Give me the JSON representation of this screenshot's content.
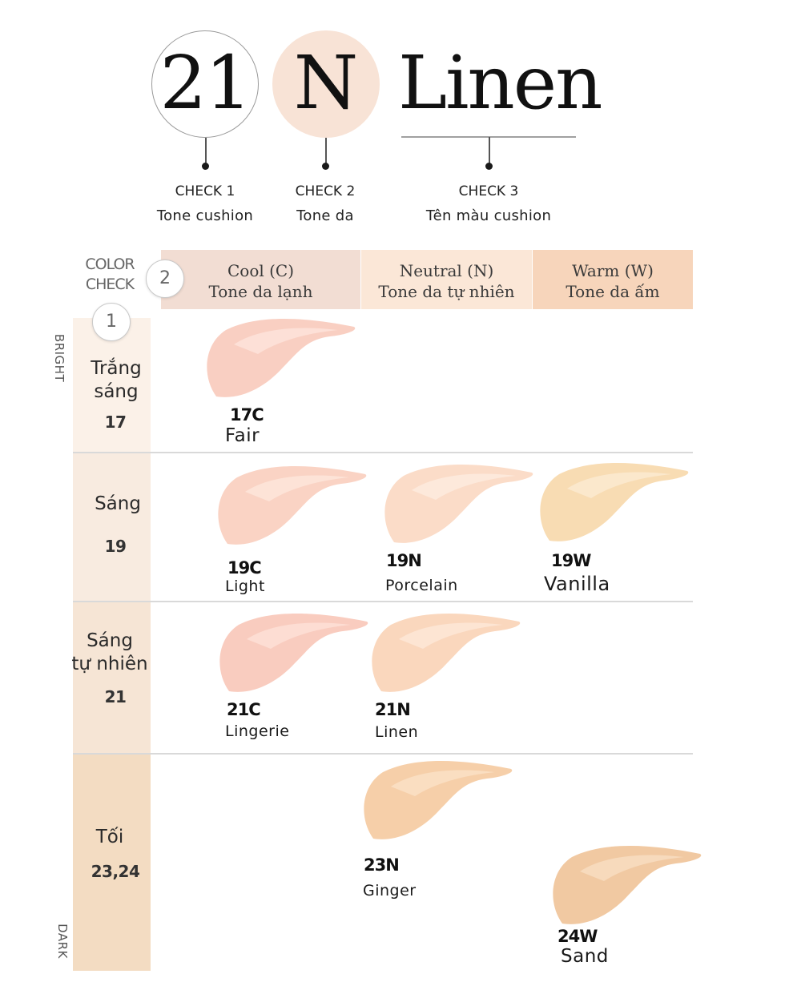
{
  "legend": {
    "code_number": "21",
    "code_letter": "N",
    "code_name": "Linen",
    "checks": [
      {
        "label": "CHECK 1",
        "desc": "Tone cushion"
      },
      {
        "label": "CHECK 2",
        "desc": "Tone da"
      },
      {
        "label": "CHECK 3",
        "desc": "Tên màu cushion"
      }
    ]
  },
  "table": {
    "corner_label_1": "COLOR",
    "corner_label_2": "CHECK",
    "step_2": "2",
    "step_1": "1",
    "columns": [
      {
        "line1": "Cool (C)",
        "line2": "Tone da lạnh",
        "color": "#f2ddd3"
      },
      {
        "line1": "Neutral (N)",
        "line2": "Tone da tự nhiên",
        "color": "#fbe7d7"
      },
      {
        "line1": "Warm (W)",
        "line2": "Tone da ấm",
        "color": "#f7d5bb"
      }
    ],
    "axis_top": "BRIGHT",
    "axis_bottom": "DARK",
    "rows": [
      {
        "title_1": "Trắng",
        "title_2": "sáng",
        "num": "17",
        "band_color": "#fbf1e8"
      },
      {
        "title_1": "Sáng",
        "title_2": "",
        "num": "19",
        "band_color": "#f8ebe0"
      },
      {
        "title_1": "Sáng",
        "title_2": "tự nhiên",
        "num": "21",
        "band_color": "#f6e5d5"
      },
      {
        "title_1": "Tối",
        "title_2": "",
        "num": "23,24",
        "band_color": "#f3dcc2"
      }
    ]
  },
  "shades": [
    {
      "code": "17C",
      "name": "Fair",
      "color": "#f9cfc2",
      "highlight": "#fde6de"
    },
    {
      "code": "19C",
      "name": "Light",
      "color": "#fad3c4",
      "highlight": "#fde8de"
    },
    {
      "code": "19N",
      "name": "Porcelain",
      "color": "#fbdcc8",
      "highlight": "#feede2"
    },
    {
      "code": "19W",
      "name": "Vanilla",
      "color": "#f8dcb3",
      "highlight": "#fcecd4"
    },
    {
      "code": "21C",
      "name": "Lingerie",
      "color": "#f9ccbf",
      "highlight": "#fde3da"
    },
    {
      "code": "21N",
      "name": "Linen",
      "color": "#fad7bd",
      "highlight": "#fdeadb"
    },
    {
      "code": "23N",
      "name": "Ginger",
      "color": "#f6cfa9",
      "highlight": "#fbe3ca"
    },
    {
      "code": "24W",
      "name": "Sand",
      "color": "#f1c9a2",
      "highlight": "#f8dfc4"
    }
  ]
}
